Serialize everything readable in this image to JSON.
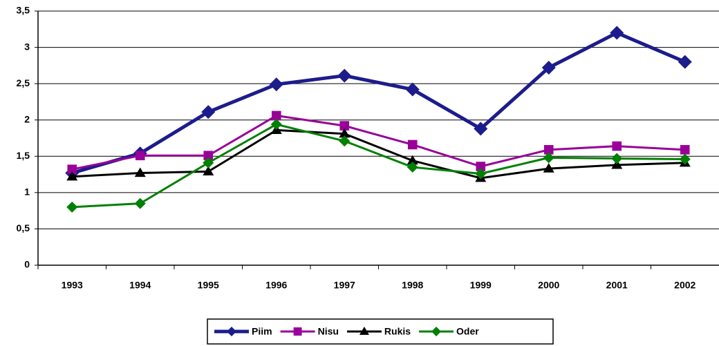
{
  "chart_data": {
    "type": "line",
    "categories": [
      "1993",
      "1994",
      "1995",
      "1996",
      "1997",
      "1998",
      "1999",
      "2000",
      "2001",
      "2002"
    ],
    "series": [
      {
        "name": "Piim",
        "color": "#1c1c8c",
        "marker": "diamond",
        "values": [
          1.27,
          1.54,
          2.11,
          2.49,
          2.61,
          2.42,
          1.88,
          2.72,
          3.2,
          2.8
        ]
      },
      {
        "name": "Nisu",
        "color": "#990099",
        "marker": "square",
        "values": [
          1.32,
          1.51,
          1.51,
          2.06,
          1.92,
          1.66,
          1.36,
          1.59,
          1.64,
          1.59
        ]
      },
      {
        "name": "Rukis",
        "color": "#000000",
        "marker": "triangle",
        "values": [
          1.22,
          1.27,
          1.29,
          1.86,
          1.81,
          1.44,
          1.2,
          1.33,
          1.38,
          1.41
        ]
      },
      {
        "name": "Oder",
        "color": "#008000",
        "marker": "diamond",
        "values": [
          0.8,
          0.85,
          1.41,
          1.94,
          1.71,
          1.35,
          1.26,
          1.48,
          1.47,
          1.46
        ]
      }
    ],
    "ylim": [
      0,
      3.5
    ],
    "yticks": [
      0,
      {
        "value": 0.5,
        "label": "0,5"
      },
      1,
      {
        "value": 1.5,
        "label": "1,5"
      },
      2,
      {
        "value": 2.5,
        "label": "2,5"
      },
      3,
      {
        "value": 3.5,
        "label": "3,5"
      }
    ],
    "grid": true,
    "legend": "bottom"
  }
}
